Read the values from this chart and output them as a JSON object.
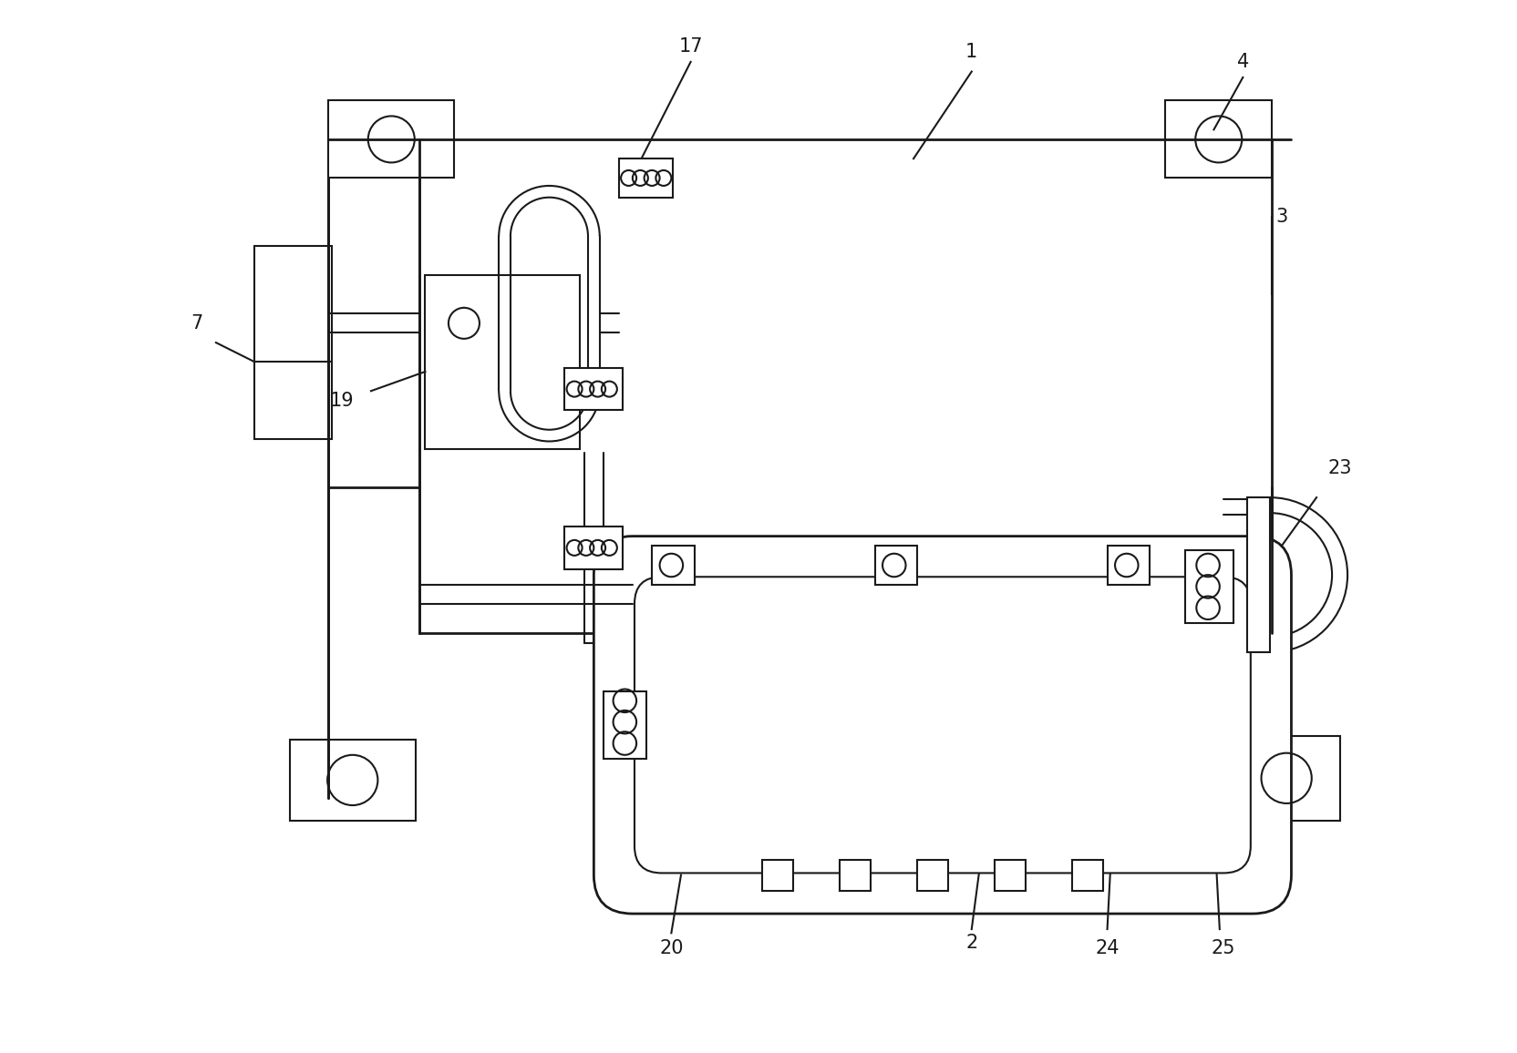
{
  "bg_color": "#ffffff",
  "line_color": "#1a1a1a",
  "lw": 1.5,
  "lw_thick": 2.0,
  "fig_width": 16.64,
  "fig_height": 11.56,
  "label_fontsize": 15
}
